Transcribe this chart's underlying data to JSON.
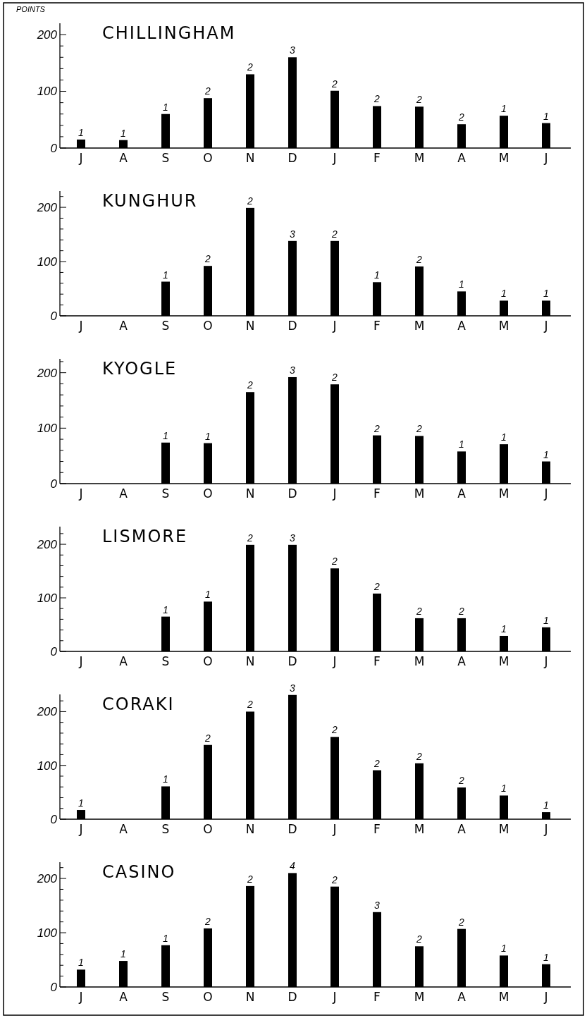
{
  "chart_data": [
    {
      "type": "bar",
      "title": "CHILLINGHAM",
      "ylabel": "POINTS",
      "categories": [
        "J",
        "A",
        "S",
        "O",
        "N",
        "D",
        "J",
        "F",
        "M",
        "A",
        "M",
        "J"
      ],
      "values": [
        15,
        14,
        60,
        88,
        130,
        160,
        101,
        74,
        73,
        42,
        57,
        44
      ],
      "color": "#000000",
      "ylim": [
        0,
        220
      ],
      "yticks": [
        0,
        {
          "value": 20,
          "label": null
        },
        {
          "value": 40,
          "label": null
        },
        {
          "value": 60,
          "label": null
        },
        {
          "value": 80,
          "label": null
        },
        100,
        {
          "value": 120,
          "label": null
        },
        {
          "value": 140,
          "label": null
        },
        {
          "value": 160,
          "label": null
        },
        {
          "value": 180,
          "label": null
        },
        200
      ],
      "annotations": [
        {
          "text": "1",
          "x": "J",
          "y": 15
        },
        {
          "text": "1",
          "x": "A",
          "y": 14
        },
        {
          "text": "1",
          "x": "S",
          "y": 60
        },
        {
          "text": "2",
          "x": "O",
          "y": 88
        },
        {
          "text": "2",
          "x": "N",
          "y": 130
        },
        {
          "text": "3",
          "x": "D",
          "y": 160
        },
        "2",
        {
          "text": "2",
          "x": "F",
          "y": 74
        },
        {
          "text": "2",
          "x": "M",
          "y": 73
        },
        "2",
        "1",
        "1"
      ]
    },
    {
      "type": "bar",
      "title": "KUNGHUR",
      "categories": [
        "J",
        "A",
        "S",
        "O",
        "N",
        "D",
        "J",
        "F",
        "M",
        "A",
        "M",
        "J"
      ],
      "values": [
        null,
        null,
        63,
        92,
        199,
        138,
        138,
        62,
        91,
        45,
        28,
        28
      ],
      "color": "#000000",
      "ylim": [
        0,
        230
      ],
      "yticks": [
        0,
        {
          "value": 20,
          "label": null
        },
        {
          "value": 40,
          "label": null
        },
        {
          "value": 60,
          "label": null
        },
        {
          "value": 80,
          "label": null
        },
        100,
        {
          "value": 120,
          "label": null
        },
        {
          "value": 140,
          "label": null
        },
        {
          "value": 160,
          "label": null
        },
        {
          "value": 180,
          "label": null
        },
        200,
        {
          "value": 220,
          "label": null
        }
      ],
      "annotations": [
        {
          "text": "1",
          "x": "S",
          "y": 63
        },
        {
          "text": "2",
          "x": "O",
          "y": 92
        },
        {
          "text": "2",
          "x": "N",
          "y": 199
        },
        {
          "text": "3",
          "x": "D",
          "y": 138
        },
        "2",
        {
          "text": "1",
          "x": "F",
          "y": 62
        },
        {
          "text": "2",
          "x": "M",
          "y": 91
        },
        "1",
        "1",
        "1"
      ]
    },
    {
      "type": "bar",
      "title": "KYOGLE",
      "categories": [
        "J",
        "A",
        "S",
        "O",
        "N",
        "D",
        "J",
        "F",
        "M",
        "A",
        "M",
        "J"
      ],
      "values": [
        null,
        null,
        74,
        73,
        165,
        192,
        179,
        87,
        86,
        58,
        71,
        40
      ],
      "color": "#000000",
      "ylim": [
        0,
        225
      ],
      "yticks": [
        0,
        {
          "value": 20,
          "label": null
        },
        {
          "value": 40,
          "label": null
        },
        {
          "value": 60,
          "label": null
        },
        {
          "value": 80,
          "label": null
        },
        100,
        {
          "value": 120,
          "label": null
        },
        {
          "value": 140,
          "label": null
        },
        {
          "value": 160,
          "label": null
        },
        {
          "value": 180,
          "label": null
        },
        200,
        {
          "value": 220,
          "label": null
        }
      ],
      "annotations": [
        {
          "text": "1",
          "x": "S",
          "y": 74
        },
        {
          "text": "1",
          "x": "O",
          "y": 73
        },
        {
          "text": "2",
          "x": "N",
          "y": 165
        },
        {
          "text": "3",
          "x": "D",
          "y": 192
        },
        "2",
        {
          "text": "2",
          "x": "F",
          "y": 87
        },
        {
          "text": "2",
          "x": "M",
          "y": 86
        },
        "1",
        "1",
        "1"
      ]
    },
    {
      "type": "bar",
      "title": "LISMORE",
      "categories": [
        "J",
        "A",
        "S",
        "O",
        "N",
        "D",
        "J",
        "F",
        "M",
        "A",
        "M",
        "J"
      ],
      "values": [
        null,
        null,
        65,
        93,
        199,
        199,
        155,
        108,
        62,
        62,
        29,
        45
      ],
      "color": "#000000",
      "ylim": [
        0,
        233
      ],
      "yticks": [
        0,
        {
          "value": 20,
          "label": null
        },
        {
          "value": 40,
          "label": null
        },
        {
          "value": 60,
          "label": null
        },
        {
          "value": 80,
          "label": null
        },
        100,
        {
          "value": 120,
          "label": null
        },
        {
          "value": 140,
          "label": null
        },
        {
          "value": 160,
          "label": null
        },
        {
          "value": 180,
          "label": null
        },
        200,
        {
          "value": 220,
          "label": null
        }
      ],
      "annotations": [
        {
          "text": "1",
          "x": "S",
          "y": 65
        },
        {
          "text": "1",
          "x": "O",
          "y": 93
        },
        {
          "text": "2",
          "x": "N",
          "y": 199
        },
        {
          "text": "3",
          "x": "D",
          "y": 199
        },
        "2",
        {
          "text": "2",
          "x": "F",
          "y": 108
        },
        {
          "text": "2",
          "x": "M",
          "y": 62
        },
        "2",
        "1",
        "1"
      ]
    },
    {
      "type": "bar",
      "title": "CORAKI",
      "categories": [
        "J",
        "A",
        "S",
        "O",
        "N",
        "D",
        "J",
        "F",
        "M",
        "A",
        "M",
        "J"
      ],
      "values": [
        17,
        null,
        61,
        138,
        200,
        231,
        153,
        91,
        104,
        59,
        44,
        13
      ],
      "color": "#000000",
      "ylim": [
        0,
        232
      ],
      "yticks": [
        0,
        {
          "value": 20,
          "label": null
        },
        {
          "value": 40,
          "label": null
        },
        {
          "value": 60,
          "label": null
        },
        {
          "value": 80,
          "label": null
        },
        100,
        {
          "value": 120,
          "label": null
        },
        {
          "value": 140,
          "label": null
        },
        {
          "value": 160,
          "label": null
        },
        {
          "value": 180,
          "label": null
        },
        200,
        {
          "value": 220,
          "label": null
        }
      ],
      "annotations": [
        {
          "text": "1",
          "x": "J",
          "y": 17
        },
        {
          "text": "1",
          "x": "S",
          "y": 61
        },
        {
          "text": "2",
          "x": "O",
          "y": 138
        },
        {
          "text": "2",
          "x": "N",
          "y": 200
        },
        {
          "text": "3",
          "x": "D",
          "y": 231
        },
        "2",
        {
          "text": "2",
          "x": "F",
          "y": 91
        },
        {
          "text": "2",
          "x": "M",
          "y": 104
        },
        "2",
        "1",
        "1"
      ]
    },
    {
      "type": "bar",
      "title": "CASINO",
      "categories": [
        "J",
        "A",
        "S",
        "O",
        "N",
        "D",
        "J",
        "F",
        "M",
        "A",
        "M",
        "J"
      ],
      "values": [
        32,
        48,
        77,
        108,
        186,
        210,
        185,
        138,
        75,
        107,
        58,
        42
      ],
      "color": "#000000",
      "ylim": [
        0,
        230
      ],
      "yticks": [
        0,
        {
          "value": 20,
          "label": null
        },
        {
          "value": 40,
          "label": null
        },
        {
          "value": 60,
          "label": null
        },
        {
          "value": 80,
          "label": null
        },
        100,
        {
          "value": 120,
          "label": null
        },
        {
          "value": 140,
          "label": null
        },
        {
          "value": 160,
          "label": null
        },
        {
          "value": 180,
          "label": null
        },
        200,
        {
          "value": 220,
          "label": null
        }
      ],
      "annotations": [
        {
          "text": "1",
          "x": "J",
          "y": 32
        },
        {
          "text": "1",
          "x": "A",
          "y": 48
        },
        {
          "text": "1",
          "x": "S",
          "y": 77
        },
        {
          "text": "2",
          "x": "O",
          "y": 108
        },
        {
          "text": "2",
          "x": "N",
          "y": 186
        },
        {
          "text": "4",
          "x": "D",
          "y": 210
        },
        "2",
        {
          "text": "3",
          "x": "F",
          "y": 138
        },
        {
          "text": "2",
          "x": "M",
          "y": 75
        },
        "2",
        "1",
        "1"
      ]
    }
  ]
}
